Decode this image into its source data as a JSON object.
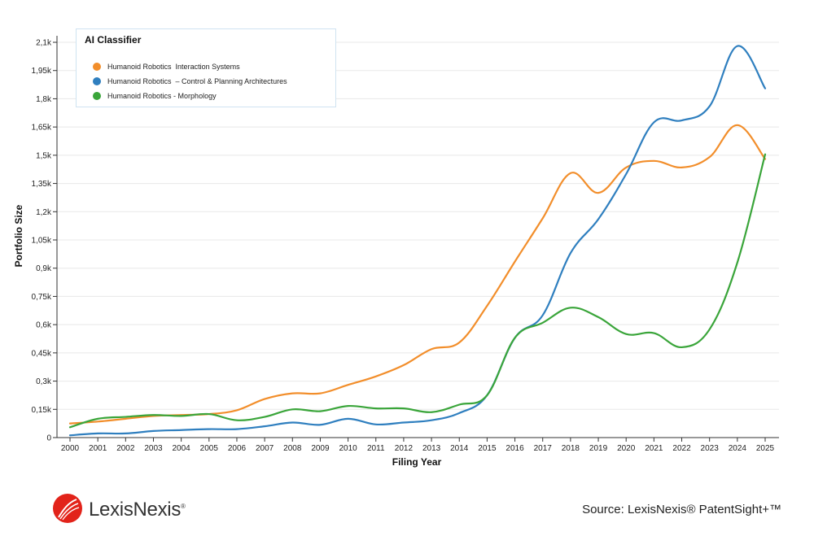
{
  "chart_data": {
    "type": "line",
    "title": "",
    "xlabel": "Filing Year",
    "ylabel": "Portfolio Size",
    "x": [
      2000,
      2001,
      2002,
      2003,
      2004,
      2005,
      2006,
      2007,
      2008,
      2009,
      2010,
      2011,
      2012,
      2013,
      2014,
      2015,
      2016,
      2017,
      2018,
      2019,
      2020,
      2021,
      2022,
      2023,
      2024,
      2025
    ],
    "x_tick_labels": [
      "2000",
      "2001",
      "2002",
      "2003",
      "2004",
      "2005",
      "2006",
      "2007",
      "2008",
      "2009",
      "2010",
      "2011",
      "2012",
      "2013",
      "2014",
      "2015",
      "2016",
      "2017",
      "2018",
      "2019",
      "2020",
      "2021",
      "2022",
      "2023",
      "2024",
      "2025"
    ],
    "y_ticks": [
      0,
      150,
      300,
      450,
      600,
      750,
      900,
      1050,
      1200,
      1350,
      1500,
      1650,
      1800,
      1950,
      2100
    ],
    "y_tick_labels": [
      "0",
      "0,15k",
      "0,3k",
      "0,45k",
      "0,6k",
      "0,75k",
      "0,9k",
      "1,05k",
      "1,2k",
      "1,35k",
      "1,5k",
      "1,65k",
      "1,8k",
      "1,95k",
      "2,1k"
    ],
    "ylim": [
      0,
      2100
    ],
    "legend": {
      "title": "AI Classifier",
      "placement": "top-left"
    },
    "series": [
      {
        "name": "Humanoid Robotics  Interaction Systems",
        "color": "#f28e2b",
        "values": [
          75,
          85,
          100,
          115,
          120,
          125,
          145,
          205,
          235,
          235,
          280,
          325,
          385,
          470,
          505,
          700,
          935,
          1165,
          1405,
          1300,
          1435,
          1470,
          1435,
          1490,
          1660,
          1480
        ]
      },
      {
        "name": "Humanoid Robotics  – Control & Planning Architectures",
        "color": "#2f7fbf",
        "values": [
          12,
          22,
          22,
          35,
          40,
          45,
          45,
          60,
          80,
          68,
          100,
          70,
          80,
          92,
          130,
          225,
          530,
          650,
          980,
          1160,
          1400,
          1675,
          1685,
          1760,
          2080,
          1855
        ]
      },
      {
        "name": "Humanoid Robotics - Morphology",
        "color": "#3aa53a",
        "values": [
          55,
          100,
          110,
          120,
          115,
          125,
          92,
          110,
          150,
          140,
          168,
          155,
          155,
          135,
          175,
          225,
          530,
          610,
          690,
          640,
          550,
          555,
          480,
          575,
          930,
          1505
        ]
      }
    ]
  },
  "footer": {
    "logo_text": "LexisNexis",
    "logo_reg": "®",
    "source_text": "Source: LexisNexis® PatentSight+™"
  }
}
